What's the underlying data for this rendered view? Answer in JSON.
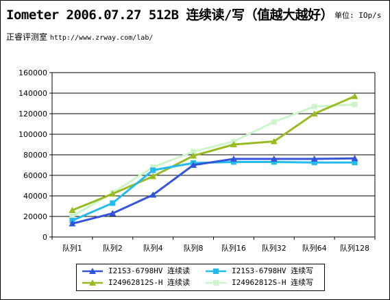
{
  "header": {
    "title": "Iometer 2006.07.27 512B 连续读/写（值越大越好）",
    "unit": "单位: IOp/s",
    "source_label": "正睿评测室",
    "source_url": "http://www.zrway.com/lab/"
  },
  "chart_data": {
    "type": "line",
    "categories": [
      "队列1",
      "队列2",
      "队列4",
      "队列8",
      "队列16",
      "队列32",
      "队列64",
      "队列128"
    ],
    "ylim": [
      0,
      160000
    ],
    "yticks": [
      "0",
      "20000",
      "40000",
      "60000",
      "80000",
      "100000",
      "120000",
      "140000",
      "160000"
    ],
    "ytick_values": [
      0,
      20000,
      40000,
      60000,
      80000,
      100000,
      120000,
      140000,
      160000
    ],
    "grid": true,
    "legend_position": "bottom",
    "series": [
      {
        "name": "I21S3-6798HV 连续读",
        "color": "#3355dd",
        "marker": "triangle",
        "values": [
          13000,
          23000,
          41000,
          70000,
          76000,
          76000,
          76000,
          76500
        ]
      },
      {
        "name": "I21S3-6798HV 连续写",
        "color": "#22bbee",
        "marker": "square",
        "values": [
          16000,
          33000,
          65000,
          72000,
          73000,
          73000,
          72500,
          72500
        ]
      },
      {
        "name": "I24962812S-H 连续读",
        "color": "#99bb22",
        "marker": "triangle",
        "values": [
          26000,
          42000,
          59000,
          79000,
          90000,
          93000,
          120000,
          137000
        ]
      },
      {
        "name": "I24962812S-H 连续写",
        "color": "#ccf5cc",
        "marker": "square",
        "values": [
          20000,
          43000,
          68000,
          83000,
          93000,
          112000,
          127000,
          129000
        ]
      }
    ]
  }
}
